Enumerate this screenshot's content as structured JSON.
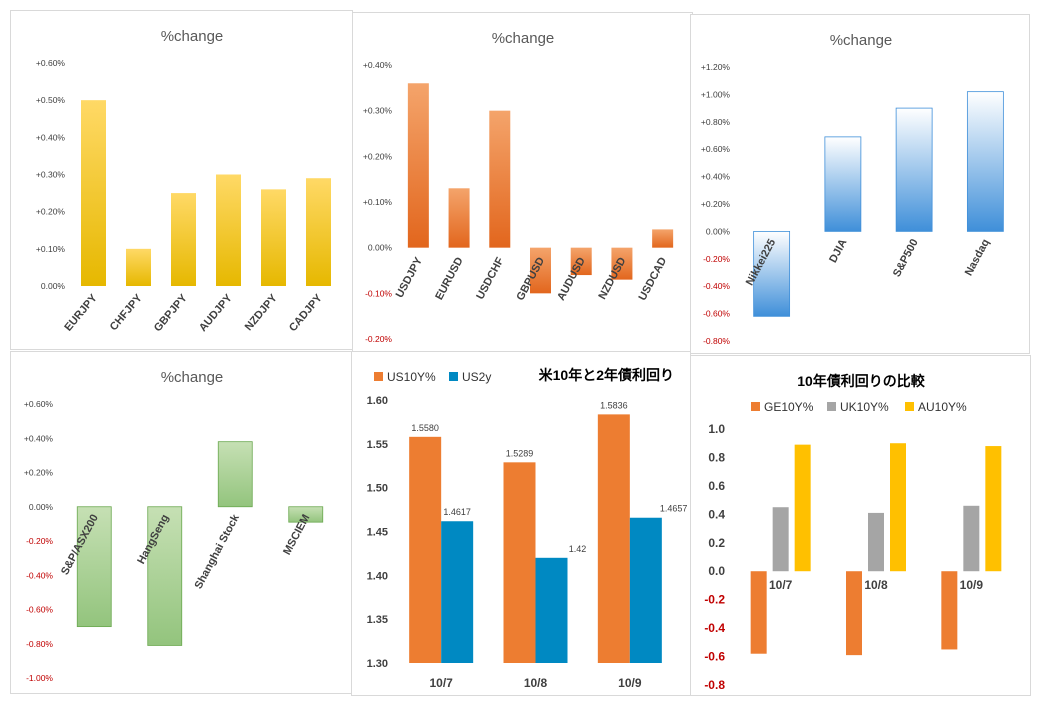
{
  "colors": {
    "gold_top": "#ffd966",
    "gold_bottom": "#e6b800",
    "orange_top": "#f4a46b",
    "orange_bottom": "#e2661d",
    "blue_top": "#ffffff",
    "blue_bottom": "#3f8fd9",
    "green_top": "#c6e0b4",
    "green_bottom": "#93c47d",
    "orange_solid": "#ed7d31",
    "blue_solid": "#0089c2",
    "gray_solid": "#a5a5a5",
    "yellow_solid": "#ffc000",
    "negative_label": "#c00000"
  },
  "chart_data": [
    {
      "id": "jpy-crosses",
      "type": "bar",
      "title": "%change",
      "categories": [
        "EURJPY",
        "CHFJPY",
        "GBPJPY",
        "AUDJPY",
        "NZDJPY",
        "CADJPY"
      ],
      "values": [
        0.5,
        0.1,
        0.25,
        0.3,
        0.26,
        0.29
      ],
      "ylim": [
        0,
        0.6
      ],
      "yticks": [
        0,
        0.1,
        0.2,
        0.3,
        0.4,
        0.5,
        0.6
      ],
      "ytick_labels": [
        "0.00%",
        "+0.10%",
        "+0.20%",
        "+0.30%",
        "+0.40%",
        "+0.50%",
        "+0.60%"
      ],
      "legend": "none"
    },
    {
      "id": "usd-pairs",
      "type": "bar",
      "title": "%change",
      "categories": [
        "USDJPY",
        "EURUSD",
        "USDCHF",
        "GBPUSD",
        "AUDUSD",
        "NZDUSD",
        "USDCAD"
      ],
      "values": [
        0.36,
        0.13,
        0.3,
        -0.1,
        -0.06,
        -0.07,
        0.04
      ],
      "ylim": [
        -0.2,
        0.4
      ],
      "yticks": [
        -0.2,
        -0.1,
        0,
        0.1,
        0.2,
        0.3,
        0.4
      ],
      "ytick_labels": [
        "-0.20%",
        "-0.10%",
        "0.00%",
        "+0.10%",
        "+0.20%",
        "+0.30%",
        "+0.40%"
      ],
      "legend": "none"
    },
    {
      "id": "stock-indices",
      "type": "bar",
      "title": "%change",
      "categories": [
        "Nikkei225",
        "DJIA",
        "S&P500",
        "Nasdaq"
      ],
      "values": [
        -0.62,
        0.69,
        0.9,
        1.02
      ],
      "ylim": [
        -0.8,
        1.2
      ],
      "yticks": [
        -0.8,
        -0.6,
        -0.4,
        -0.2,
        0,
        0.2,
        0.4,
        0.6,
        0.8,
        1.0,
        1.2
      ],
      "ytick_labels": [
        "-0.80%",
        "-0.60%",
        "-0.40%",
        "-0.20%",
        "0.00%",
        "+0.20%",
        "+0.40%",
        "+0.60%",
        "+0.80%",
        "+1.00%",
        "+1.20%"
      ],
      "legend": "none"
    },
    {
      "id": "asia-indices",
      "type": "bar",
      "title": "%change",
      "categories": [
        "S&P/ASX200",
        "HangSeng",
        "Shanghai Stock",
        "MSCIEM"
      ],
      "values": [
        -0.7,
        -0.81,
        0.38,
        -0.09
      ],
      "ylim": [
        -1.0,
        0.6
      ],
      "yticks": [
        -1.0,
        -0.8,
        -0.6,
        -0.4,
        -0.2,
        0,
        0.2,
        0.4,
        0.6
      ],
      "ytick_labels": [
        "-1.00%",
        "-0.80%",
        "-0.60%",
        "-0.40%",
        "-0.20%",
        "0.00%",
        "+0.20%",
        "+0.40%",
        "+0.60%"
      ],
      "legend": "none"
    },
    {
      "id": "us-yields",
      "type": "bar",
      "title": "米10年と2年債利回り",
      "categories": [
        "10/7",
        "10/8",
        "10/9"
      ],
      "series": [
        {
          "name": "US10Y%",
          "values": [
            1.558,
            1.5289,
            1.5836
          ],
          "labels": [
            "1.5580",
            "1.5289",
            "1.5836"
          ]
        },
        {
          "name": "US2y",
          "values": [
            1.4617,
            1.42,
            1.4657
          ],
          "labels": [
            "1.4617",
            "1.42",
            "1.4657"
          ]
        }
      ],
      "ylim": [
        1.3,
        1.6
      ],
      "yticks": [
        1.3,
        1.35,
        1.4,
        1.45,
        1.5,
        1.55,
        1.6
      ],
      "ytick_labels": [
        "1.30",
        "1.35",
        "1.40",
        "1.45",
        "1.50",
        "1.55",
        "1.60"
      ],
      "legend": "top-left"
    },
    {
      "id": "10y-yields",
      "type": "bar",
      "title": "10年債利回りの比較",
      "categories": [
        "10/7",
        "10/8",
        "10/9"
      ],
      "series": [
        {
          "name": "GE10Y%",
          "values": [
            -0.58,
            -0.59,
            -0.55
          ]
        },
        {
          "name": "UK10Y%",
          "values": [
            0.45,
            0.41,
            0.46
          ]
        },
        {
          "name": "AU10Y%",
          "values": [
            0.89,
            0.9,
            0.88
          ]
        }
      ],
      "ylim": [
        -0.8,
        1.0
      ],
      "yticks": [
        -0.8,
        -0.6,
        -0.4,
        -0.2,
        0,
        0.2,
        0.4,
        0.6,
        0.8,
        1.0
      ],
      "ytick_labels": [
        "-0.8",
        "-0.6",
        "-0.4",
        "-0.2",
        "0.0",
        "0.2",
        "0.4",
        "0.6",
        "0.8",
        "1.0"
      ],
      "legend": "top"
    }
  ]
}
